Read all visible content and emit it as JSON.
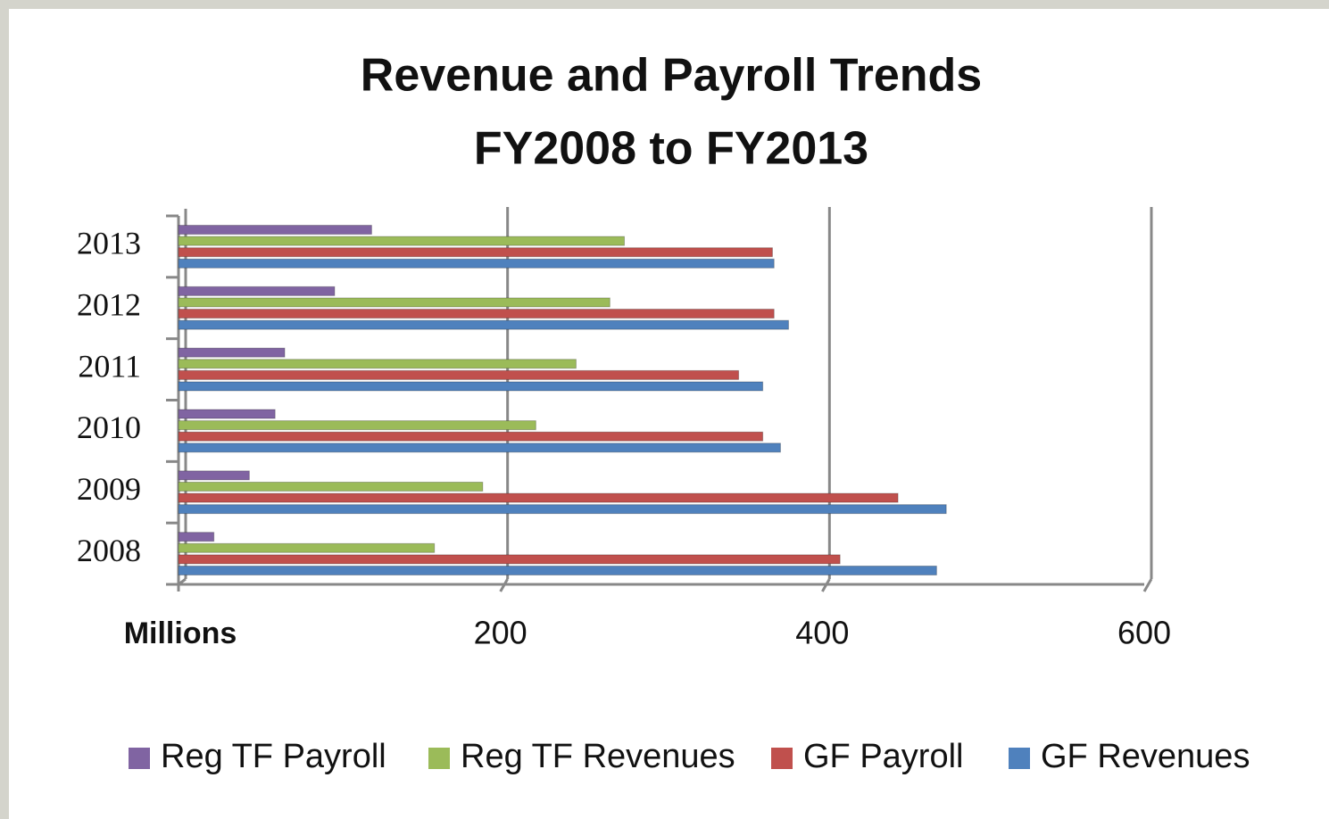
{
  "chart_data": {
    "type": "bar",
    "orientation": "horizontal",
    "title": "Revenue and Payroll Trends",
    "subtitle": "FY2008 to FY2013",
    "x_label": "Millions",
    "categories": [
      "2008",
      "2009",
      "2010",
      "2011",
      "2012",
      "2013"
    ],
    "series": [
      {
        "name": "Reg TF Payroll",
        "color": "#8064a2",
        "values": [
          22,
          44,
          60,
          66,
          97,
          120
        ]
      },
      {
        "name": "Reg TF Revenues",
        "color": "#9bbb59",
        "values": [
          159,
          189,
          222,
          247,
          268,
          277
        ]
      },
      {
        "name": "GF Payroll",
        "color": "#c0504d",
        "values": [
          411,
          447,
          363,
          348,
          370,
          369
        ]
      },
      {
        "name": "GF Revenues",
        "color": "#4f81bd",
        "values": [
          471,
          477,
          374,
          363,
          379,
          370
        ]
      }
    ],
    "xlim": [
      0,
      600
    ],
    "xticks": [
      200,
      400,
      600
    ],
    "grid": true,
    "legend": "bottom"
  }
}
